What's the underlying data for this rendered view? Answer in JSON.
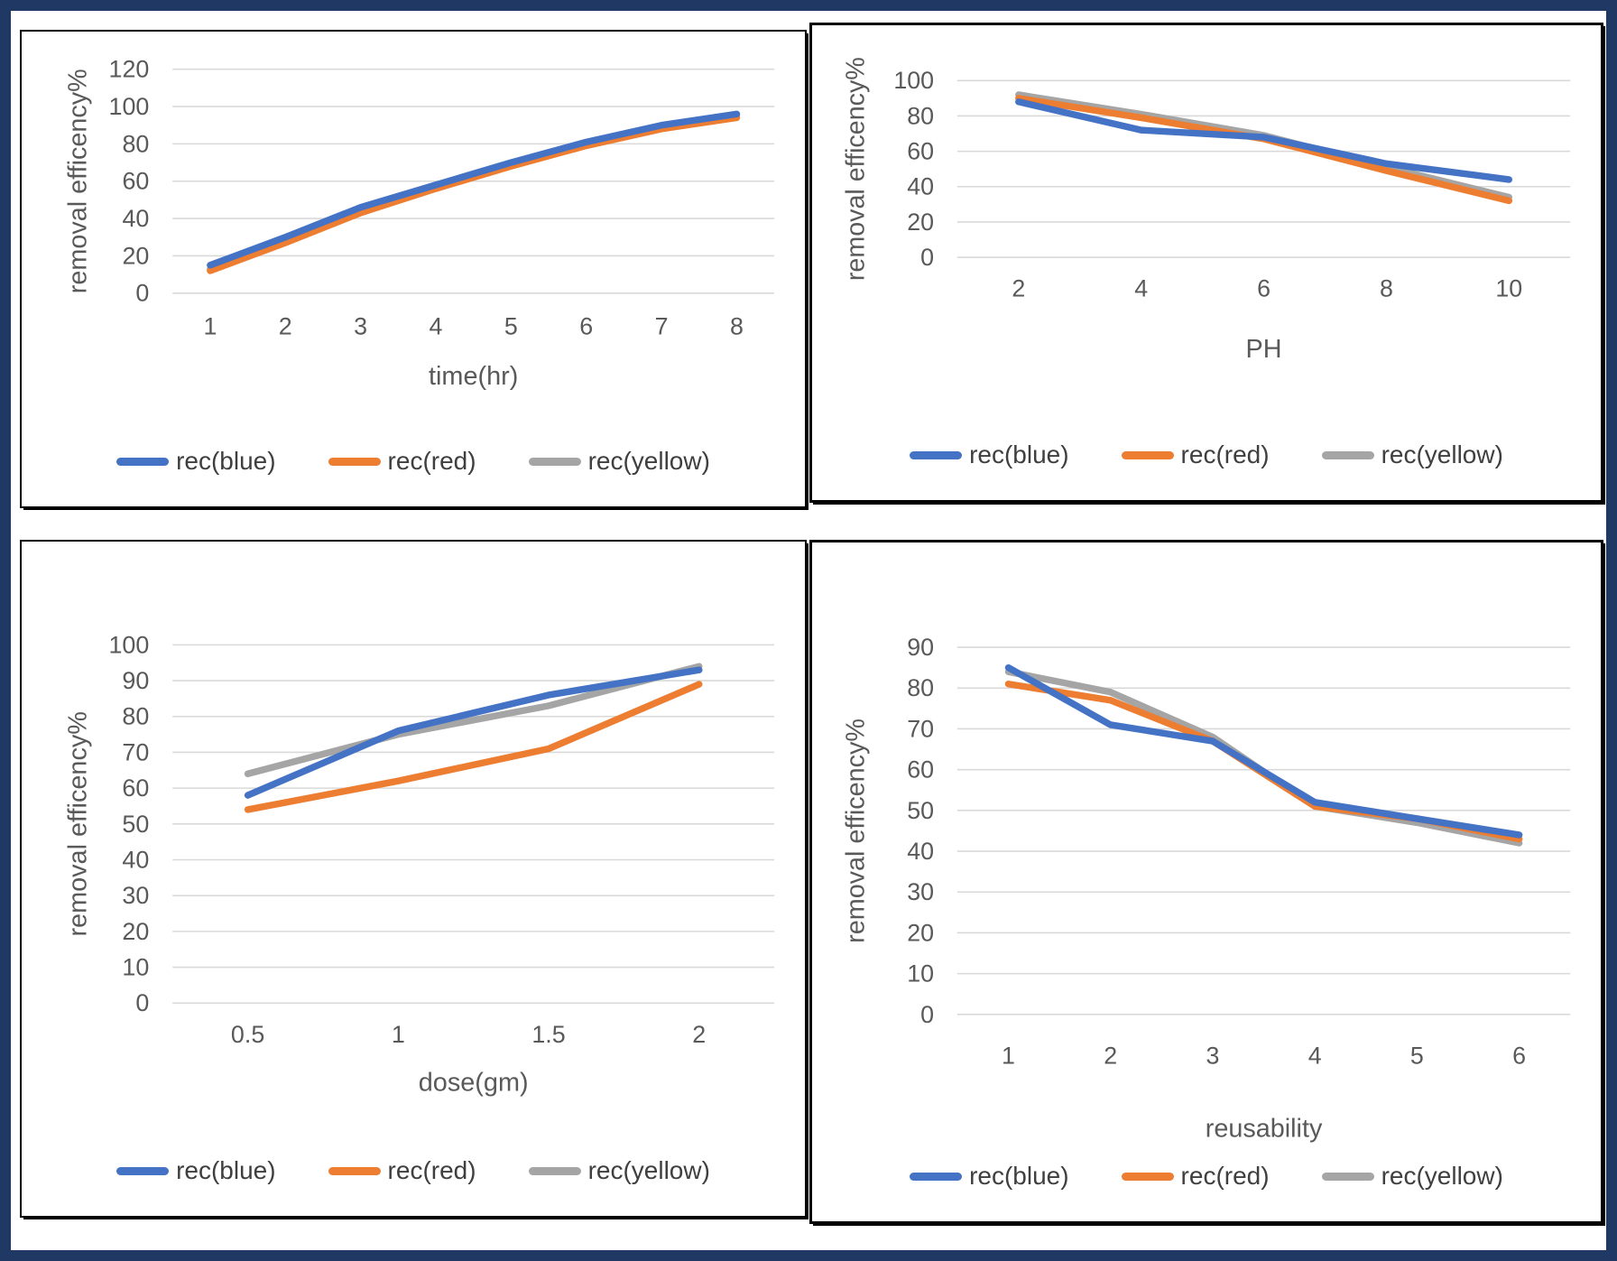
{
  "page": {
    "border_color": "#1f3864",
    "background_color": "#ffffff",
    "panel_border_color": "#000000"
  },
  "styles": {
    "grid_color": "#d9d9d9",
    "tick_text_color": "#595959",
    "title_text_color": "#595959",
    "legend_text_color": "#3f3f3f",
    "series_colors": [
      "#A5A5A5",
      "#ED7D31",
      "#4472C4"
    ]
  },
  "legend_labels": [
    "rec(blue)",
    "rec(red)",
    "rec(yellow)"
  ],
  "legend_swatch_colors": [
    "#4472C4",
    "#ED7D31",
    "#A5A5A5"
  ],
  "chart_data": [
    {
      "type": "line",
      "title": "",
      "xlabel": "time(hr)",
      "ylabel": "removal efficency%",
      "categories": [
        "1",
        "2",
        "3",
        "4",
        "5",
        "6",
        "7",
        "8"
      ],
      "ylim": [
        0,
        120
      ],
      "ytick_step": 20,
      "grid": true,
      "legend_position": "bottom",
      "series": [
        {
          "name": "rec(yellow)",
          "color": "#A5A5A5",
          "values": [
            13,
            28,
            44,
            57,
            69,
            80,
            89,
            95
          ]
        },
        {
          "name": "rec(red)",
          "color": "#ED7D31",
          "values": [
            12,
            27,
            43,
            56,
            68,
            79,
            88,
            94
          ]
        },
        {
          "name": "rec(blue)",
          "color": "#4472C4",
          "values": [
            15,
            30,
            46,
            58,
            70,
            81,
            90,
            96
          ]
        }
      ]
    },
    {
      "type": "line",
      "title": "",
      "xlabel": "PH",
      "ylabel": "removal efficency%",
      "categories": [
        "2",
        "4",
        "6",
        "8",
        "10"
      ],
      "ylim": [
        0,
        100
      ],
      "ytick_step": 20,
      "grid": true,
      "legend_position": "bottom",
      "series": [
        {
          "name": "rec(yellow)",
          "color": "#A5A5A5",
          "values": [
            92,
            81,
            69,
            51,
            34
          ]
        },
        {
          "name": "rec(red)",
          "color": "#ED7D31",
          "values": [
            90,
            79,
            67,
            49,
            32
          ]
        },
        {
          "name": "rec(blue)",
          "color": "#4472C4",
          "values": [
            88,
            72,
            68,
            53,
            44
          ]
        }
      ]
    },
    {
      "type": "line",
      "title": "",
      "xlabel": "dose(gm)",
      "ylabel": "removal efficency%",
      "categories": [
        "0.5",
        "1",
        "1.5",
        "2"
      ],
      "ylim": [
        0,
        100
      ],
      "ytick_step": 10,
      "grid": true,
      "legend_position": "bottom",
      "series": [
        {
          "name": "rec(yellow)",
          "color": "#A5A5A5",
          "values": [
            64,
            75,
            83,
            94
          ]
        },
        {
          "name": "rec(red)",
          "color": "#ED7D31",
          "values": [
            54,
            62,
            71,
            89
          ]
        },
        {
          "name": "rec(blue)",
          "color": "#4472C4",
          "values": [
            58,
            76,
            86,
            93
          ]
        }
      ]
    },
    {
      "type": "line",
      "title": "",
      "xlabel": "reusability",
      "ylabel": "removal efficency%",
      "categories": [
        "1",
        "2",
        "3",
        "4",
        "5",
        "6"
      ],
      "ylim": [
        0,
        90
      ],
      "ytick_step": 10,
      "grid": true,
      "legend_position": "bottom",
      "series": [
        {
          "name": "rec(yellow)",
          "color": "#A5A5A5",
          "values": [
            84,
            79,
            68,
            51,
            47,
            42
          ]
        },
        {
          "name": "rec(red)",
          "color": "#ED7D31",
          "values": [
            81,
            77,
            67,
            51,
            48,
            43
          ]
        },
        {
          "name": "rec(blue)",
          "color": "#4472C4",
          "values": [
            85,
            71,
            67,
            52,
            48,
            44
          ]
        }
      ]
    }
  ]
}
